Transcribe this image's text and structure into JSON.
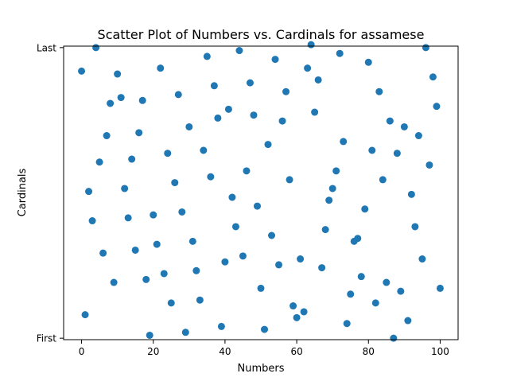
{
  "chart_data": {
    "type": "scatter",
    "title": "Scatter Plot of Numbers vs. Cardinals for assamese",
    "xlabel": "Numbers",
    "ylabel": "Cardinals",
    "xlim": [
      -5,
      105
    ],
    "ylim": [
      -0.5,
      99.5
    ],
    "xticks": [
      0,
      20,
      40,
      60,
      80,
      100
    ],
    "yticks": [
      {
        "value": 0,
        "label": "First"
      },
      {
        "value": 99,
        "label": "Last"
      }
    ],
    "marker_color": "#1f77b4",
    "grid": false,
    "points": [
      [
        0,
        91
      ],
      [
        1,
        8
      ],
      [
        2,
        50
      ],
      [
        3,
        40
      ],
      [
        4,
        99
      ],
      [
        5,
        60
      ],
      [
        6,
        29
      ],
      [
        7,
        69
      ],
      [
        8,
        80
      ],
      [
        9,
        19
      ],
      [
        10,
        90
      ],
      [
        11,
        82
      ],
      [
        12,
        51
      ],
      [
        13,
        41
      ],
      [
        14,
        61
      ],
      [
        15,
        30
      ],
      [
        16,
        70
      ],
      [
        17,
        81
      ],
      [
        18,
        20
      ],
      [
        19,
        1
      ],
      [
        20,
        42
      ],
      [
        21,
        32
      ],
      [
        22,
        92
      ],
      [
        23,
        22
      ],
      [
        24,
        63
      ],
      [
        25,
        12
      ],
      [
        26,
        53
      ],
      [
        27,
        83
      ],
      [
        28,
        43
      ],
      [
        29,
        2
      ],
      [
        30,
        72
      ],
      [
        31,
        33
      ],
      [
        32,
        23
      ],
      [
        33,
        13
      ],
      [
        34,
        64
      ],
      [
        35,
        96
      ],
      [
        36,
        55
      ],
      [
        37,
        86
      ],
      [
        38,
        75
      ],
      [
        39,
        4
      ],
      [
        40,
        26
      ],
      [
        41,
        78
      ],
      [
        42,
        48
      ],
      [
        43,
        38
      ],
      [
        44,
        98
      ],
      [
        45,
        28
      ],
      [
        46,
        57
      ],
      [
        47,
        87
      ],
      [
        48,
        76
      ],
      [
        49,
        45
      ],
      [
        50,
        17
      ],
      [
        51,
        3
      ],
      [
        52,
        66
      ],
      [
        53,
        35
      ],
      [
        54,
        95
      ],
      [
        55,
        25
      ],
      [
        56,
        74
      ],
      [
        57,
        84
      ],
      [
        58,
        54
      ],
      [
        59,
        11
      ],
      [
        60,
        7
      ],
      [
        61,
        27
      ],
      [
        62,
        9
      ],
      [
        63,
        92
      ],
      [
        64,
        100
      ],
      [
        65,
        77
      ],
      [
        66,
        88
      ],
      [
        67,
        24
      ],
      [
        68,
        37
      ],
      [
        69,
        47
      ],
      [
        70,
        51
      ],
      [
        71,
        57
      ],
      [
        72,
        97
      ],
      [
        73,
        67
      ],
      [
        74,
        5
      ],
      [
        75,
        15
      ],
      [
        76,
        33
      ],
      [
        77,
        34
      ],
      [
        78,
        21
      ],
      [
        79,
        44
      ],
      [
        80,
        94
      ],
      [
        81,
        64
      ],
      [
        82,
        12
      ],
      [
        83,
        84
      ],
      [
        84,
        54
      ],
      [
        85,
        19
      ],
      [
        86,
        74
      ],
      [
        87,
        0
      ],
      [
        88,
        63
      ],
      [
        89,
        16
      ],
      [
        90,
        72
      ],
      [
        91,
        6
      ],
      [
        92,
        49
      ],
      [
        93,
        38
      ],
      [
        94,
        69
      ],
      [
        95,
        27
      ],
      [
        96,
        99
      ],
      [
        97,
        59
      ],
      [
        98,
        89
      ],
      [
        99,
        79
      ],
      [
        100,
        17
      ]
    ]
  }
}
